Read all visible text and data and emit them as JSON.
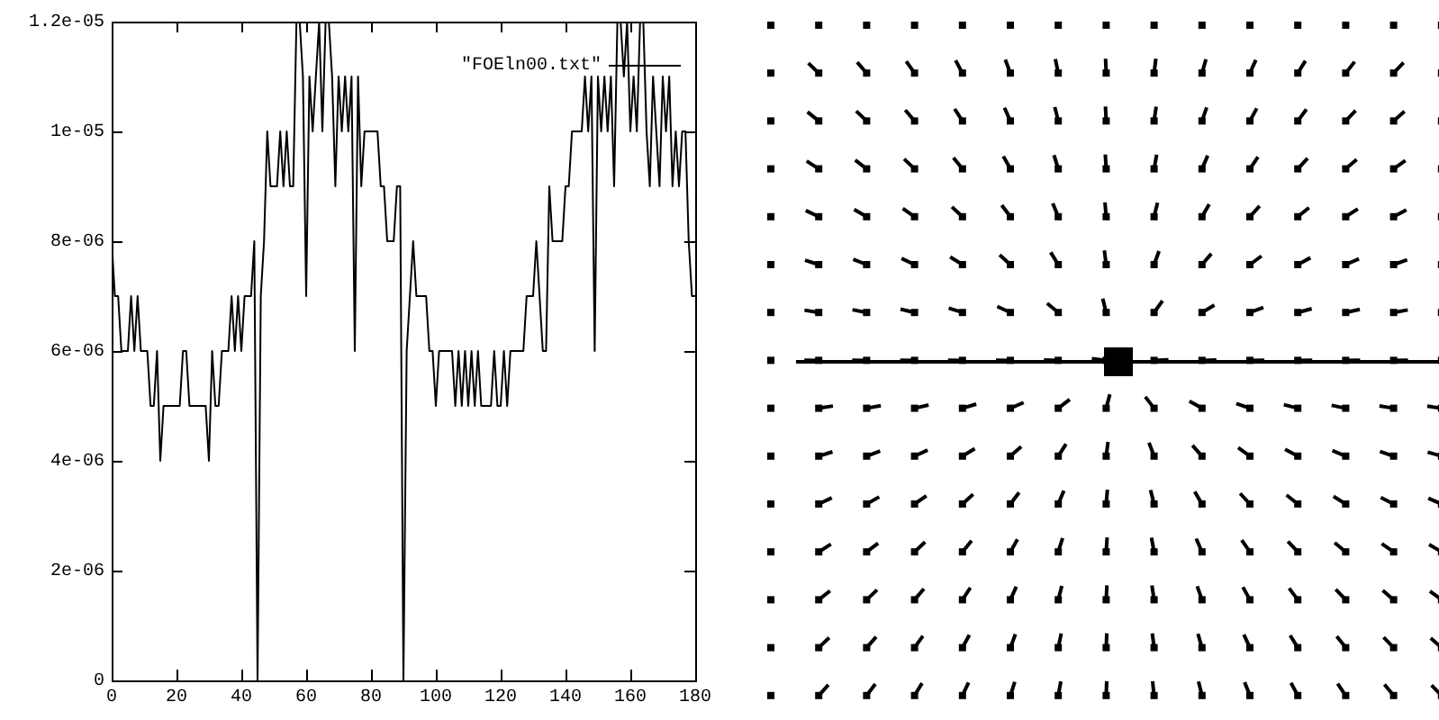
{
  "chart_data": {
    "type": "line",
    "legend": "top right",
    "grid": false,
    "marker": "none",
    "line_style": "solid",
    "x": [
      0,
      1,
      2,
      3,
      4,
      5,
      6,
      7,
      8,
      9,
      10,
      11,
      12,
      13,
      14,
      15,
      16,
      17,
      18,
      19,
      20,
      21,
      22,
      23,
      24,
      25,
      26,
      27,
      28,
      29,
      30,
      31,
      32,
      33,
      34,
      35,
      36,
      37,
      38,
      39,
      40,
      41,
      42,
      43,
      44,
      45,
      46,
      47,
      48,
      49,
      50,
      51,
      52,
      53,
      54,
      55,
      56,
      57,
      58,
      59,
      60,
      61,
      62,
      63,
      64,
      65,
      66,
      67,
      68,
      69,
      70,
      71,
      72,
      73,
      74,
      75,
      76,
      77,
      78,
      79,
      80,
      81,
      82,
      83,
      84,
      85,
      86,
      87,
      88,
      89,
      90,
      91,
      92,
      93,
      94,
      95,
      96,
      97,
      98,
      99,
      100,
      101,
      102,
      103,
      104,
      105,
      106,
      107,
      108,
      109,
      110,
      111,
      112,
      113,
      114,
      115,
      116,
      117,
      118,
      119,
      120,
      121,
      122,
      123,
      124,
      125,
      126,
      127,
      128,
      129,
      130,
      131,
      132,
      133,
      134,
      135,
      136,
      137,
      138,
      139,
      140,
      141,
      142,
      143,
      144,
      145,
      146,
      147,
      148,
      149,
      150,
      151,
      152,
      153,
      154,
      155,
      156,
      157,
      158,
      159,
      160,
      161,
      162,
      163,
      164,
      165,
      166,
      167,
      168,
      169,
      170,
      171,
      172,
      173,
      174,
      175,
      176,
      177,
      178,
      179,
      180
    ],
    "series": [
      {
        "name": "\"FOEln00.txt\"",
        "color": "#000000",
        "values": [
          8e-06,
          7e-06,
          7e-06,
          6e-06,
          6e-06,
          6e-06,
          7e-06,
          6e-06,
          7e-06,
          6e-06,
          6e-06,
          6e-06,
          5e-06,
          5e-06,
          6e-06,
          4e-06,
          5e-06,
          5e-06,
          5e-06,
          5e-06,
          5e-06,
          5e-06,
          6e-06,
          6e-06,
          5e-06,
          5e-06,
          5e-06,
          5e-06,
          5e-06,
          5e-06,
          4e-06,
          6e-06,
          5e-06,
          5e-06,
          6e-06,
          6e-06,
          6e-06,
          7e-06,
          6e-06,
          7e-06,
          6e-06,
          7e-06,
          7e-06,
          7e-06,
          8e-06,
          0,
          7e-06,
          8e-06,
          1e-05,
          9e-06,
          9e-06,
          9e-06,
          1e-05,
          9e-06,
          1e-05,
          9e-06,
          9e-06,
          1.2e-05,
          1.2e-05,
          1.1e-05,
          7e-06,
          1.1e-05,
          1e-05,
          1.1e-05,
          1.2e-05,
          1e-05,
          1.2e-05,
          1.2e-05,
          1.1e-05,
          9e-06,
          1.1e-05,
          1e-05,
          1.1e-05,
          1e-05,
          1.1e-05,
          6e-06,
          1.1e-05,
          9e-06,
          1e-05,
          1e-05,
          1e-05,
          1e-05,
          1e-05,
          9e-06,
          9e-06,
          8e-06,
          8e-06,
          8e-06,
          9e-06,
          9e-06,
          0,
          6e-06,
          7e-06,
          8e-06,
          7e-06,
          7e-06,
          7e-06,
          7e-06,
          6e-06,
          6e-06,
          5e-06,
          6e-06,
          6e-06,
          6e-06,
          6e-06,
          6e-06,
          5e-06,
          6e-06,
          5e-06,
          6e-06,
          5e-06,
          6e-06,
          5e-06,
          6e-06,
          5e-06,
          5e-06,
          5e-06,
          5e-06,
          6e-06,
          5e-06,
          5e-06,
          6e-06,
          5e-06,
          6e-06,
          6e-06,
          6e-06,
          6e-06,
          6e-06,
          7e-06,
          7e-06,
          7e-06,
          8e-06,
          7e-06,
          6e-06,
          6e-06,
          9e-06,
          8e-06,
          8e-06,
          8e-06,
          8e-06,
          9e-06,
          9e-06,
          1e-05,
          1e-05,
          1e-05,
          1e-05,
          1.1e-05,
          1e-05,
          1.1e-05,
          6e-06,
          1.1e-05,
          1e-05,
          1.1e-05,
          1e-05,
          1.1e-05,
          9e-06,
          1.2e-05,
          1.2e-05,
          1.1e-05,
          1.2e-05,
          1e-05,
          1.1e-05,
          1e-05,
          1.2e-05,
          1.2e-05,
          1e-05,
          9e-06,
          1.1e-05,
          1e-05,
          9e-06,
          1.1e-05,
          1e-05,
          1.1e-05,
          9e-06,
          1e-05,
          9e-06,
          1e-05,
          1e-05,
          8e-06,
          7e-06,
          7e-06
        ]
      }
    ],
    "xlim": [
      0,
      180
    ],
    "xticks": [
      0,
      20,
      40,
      60,
      80,
      100,
      120,
      140,
      160,
      180
    ],
    "ylim": [
      0,
      1.2e-05
    ],
    "yticks": [
      0,
      {
        "value": 2e-06,
        "label": "2e-06"
      },
      {
        "value": 4e-06,
        "label": "4e-06"
      },
      {
        "value": 6e-06,
        "label": "6e-06"
      },
      {
        "value": 8e-06,
        "label": "8e-06"
      },
      {
        "value": 1e-05,
        "label": "1e-05"
      },
      {
        "value": 1.2e-05,
        "label": "1.2e-05"
      }
    ]
  }
}
